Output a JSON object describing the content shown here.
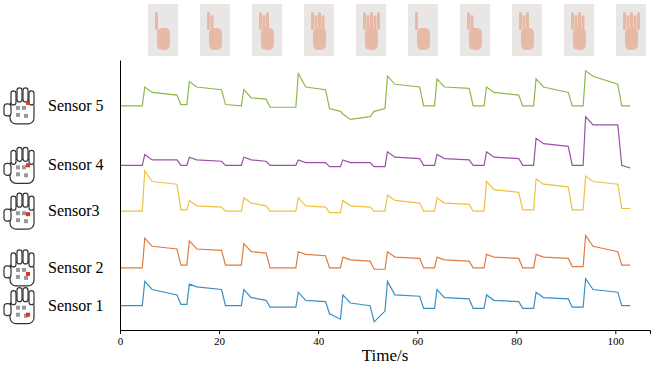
{
  "chart_data": {
    "type": "line",
    "x_label": "Time/s",
    "x": [
      0,
      4.5,
      5,
      6.5,
      11.5,
      12.3,
      13.5,
      14,
      15.5,
      20.5,
      21.3,
      24.5,
      25,
      26.5,
      29.5,
      30.3,
      35.5,
      36,
      37.5,
      41.5,
      42.3,
      44.5,
      45,
      46.5,
      50.5,
      51.3,
      53.5,
      54,
      55.5,
      60.5,
      61.3,
      63.5,
      64,
      65.5,
      70.5,
      71.3,
      73.5,
      74,
      75.5,
      80.5,
      81.3,
      83.5,
      84,
      85.5,
      90.5,
      91.3,
      93.5,
      94,
      95.5,
      100.5,
      101.3,
      103
    ],
    "series": [
      {
        "name": "Sensor 5",
        "color": "#8db84a",
        "values": [
          8.3,
          8.3,
          9.0,
          8.8,
          8.7,
          8.35,
          8.35,
          9.2,
          9.0,
          8.9,
          8.35,
          8.3,
          8.9,
          8.6,
          8.55,
          8.25,
          8.25,
          9.5,
          9.0,
          8.9,
          8.2,
          8.1,
          8.0,
          7.8,
          7.9,
          8.1,
          8.2,
          9.4,
          9.1,
          9.0,
          8.3,
          8.3,
          9.3,
          9.0,
          8.95,
          8.3,
          8.3,
          9.0,
          8.8,
          8.7,
          8.3,
          8.3,
          9.3,
          9.0,
          8.8,
          8.3,
          8.3,
          9.6,
          9.4,
          9.1,
          8.3,
          8.3
        ]
      },
      {
        "name": "Sensor 4",
        "color": "#9b4fa8",
        "values": [
          6.1,
          6.1,
          6.5,
          6.3,
          6.3,
          6.1,
          6.1,
          6.4,
          6.3,
          6.25,
          6.1,
          6.1,
          6.4,
          6.3,
          6.25,
          6.1,
          6.1,
          6.3,
          6.2,
          6.2,
          6.05,
          6.05,
          6.3,
          6.2,
          6.2,
          6.05,
          6.05,
          6.6,
          6.4,
          6.35,
          6.1,
          6.1,
          6.5,
          6.35,
          6.3,
          6.1,
          6.1,
          6.6,
          6.4,
          6.35,
          6.1,
          6.1,
          7.1,
          6.9,
          6.8,
          6.1,
          6.1,
          7.9,
          7.6,
          7.6,
          6.1,
          6.0
        ]
      },
      {
        "name": "Sensor3",
        "color": "#f0c040",
        "values": [
          4.4,
          4.4,
          5.9,
          5.5,
          5.4,
          4.45,
          4.45,
          4.8,
          4.6,
          4.55,
          4.4,
          4.4,
          4.9,
          4.7,
          4.6,
          4.4,
          4.4,
          4.9,
          4.6,
          4.55,
          4.35,
          4.35,
          4.8,
          4.6,
          4.55,
          4.4,
          4.4,
          5.0,
          4.8,
          4.7,
          4.4,
          4.4,
          4.9,
          4.7,
          4.65,
          4.4,
          4.4,
          5.5,
          5.2,
          5.1,
          4.45,
          4.45,
          5.6,
          5.4,
          5.3,
          4.45,
          4.45,
          5.7,
          5.5,
          5.4,
          4.5,
          4.5
        ]
      },
      {
        "name": "Sensor 2",
        "color": "#e07a3f",
        "values": [
          2.3,
          2.3,
          3.4,
          3.1,
          3.0,
          2.4,
          2.4,
          3.3,
          3.0,
          2.95,
          2.4,
          2.4,
          3.2,
          2.9,
          2.85,
          2.3,
          2.3,
          2.9,
          2.8,
          2.75,
          2.3,
          2.3,
          2.7,
          2.6,
          2.55,
          2.25,
          2.25,
          2.9,
          2.7,
          2.65,
          2.3,
          2.3,
          2.7,
          2.6,
          2.55,
          2.3,
          2.3,
          2.8,
          2.7,
          2.65,
          2.3,
          2.3,
          2.8,
          2.7,
          2.65,
          2.35,
          2.35,
          3.5,
          3.1,
          2.9,
          2.4,
          2.4
        ]
      },
      {
        "name": "Sensor 1",
        "color": "#3a8fc4",
        "values": [
          0.9,
          0.9,
          1.8,
          1.5,
          1.3,
          0.95,
          0.95,
          1.7,
          1.6,
          1.5,
          0.9,
          0.9,
          1.5,
          1.2,
          1.1,
          0.85,
          0.85,
          1.4,
          1.1,
          1.05,
          0.6,
          0.4,
          1.3,
          1.0,
          0.9,
          0.3,
          0.7,
          1.8,
          1.3,
          1.25,
          0.8,
          0.8,
          1.5,
          1.2,
          1.15,
          0.8,
          0.8,
          1.3,
          1.1,
          1.05,
          0.8,
          0.8,
          1.4,
          1.2,
          1.15,
          0.85,
          0.85,
          1.9,
          1.5,
          1.4,
          0.9,
          0.9
        ]
      }
    ],
    "xlim": [
      0,
      107
    ],
    "xticks": [
      0,
      20,
      40,
      60,
      80,
      100
    ],
    "ylim": [
      0,
      10
    ],
    "tick_labels": "x",
    "grid": false
  }
}
